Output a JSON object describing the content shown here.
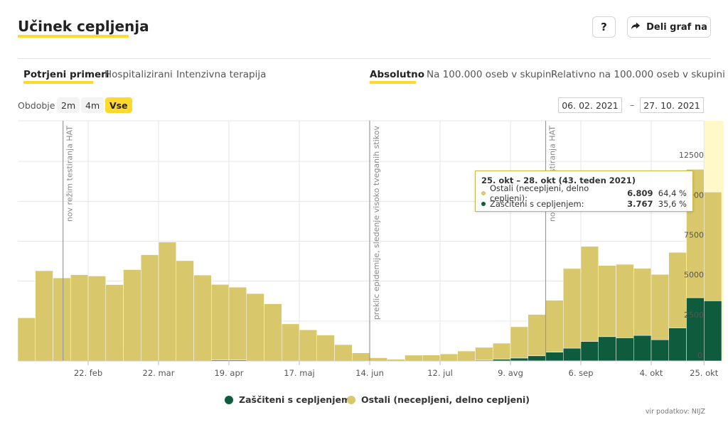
{
  "header": {
    "title": "Učinek cepljenja",
    "help_label": "?",
    "share_label": "Deli graf na"
  },
  "tabs_left": [
    {
      "label": "Potrjeni primeri",
      "active": true
    },
    {
      "label": "Hospitalizirani",
      "active": false
    },
    {
      "label": "Intenzivna terapija",
      "active": false
    }
  ],
  "tabs_right": [
    {
      "label": "Absolutno",
      "active": true
    },
    {
      "label": "Na 100.000 oseb v skupini",
      "active": false
    },
    {
      "label": "Relativno na 100.000 oseb v skupini",
      "active": false
    }
  ],
  "period": {
    "label": "Obdobje",
    "options": [
      "2m",
      "4m",
      "Vse"
    ],
    "selected": "Vse",
    "date_from": "06. 02. 2021",
    "date_to": "27. 10. 2021",
    "dash": "–"
  },
  "tooltip": {
    "header": "25. okt – 28. okt (43. teden 2021)",
    "rows": [
      {
        "label": "Ostali (necepljeni, delno cepljeni):",
        "value": "6.809",
        "pct": "64,4 %"
      },
      {
        "label": "Zaščiteni s cepljenjem:",
        "value": "3.767",
        "pct": "35,6 %"
      }
    ]
  },
  "legend": [
    {
      "label": "Zaščiteni s cepljenjem"
    },
    {
      "label": "Ostali (necepljeni, delno cepljeni)"
    }
  ],
  "source": "vir podatkov: NIJZ",
  "colors": {
    "vaccinated": "#0f5b3d",
    "other": "#d8c86b",
    "accent": "#ffd92c",
    "highlight_band": "#fff8c8",
    "plotline": "#9a9a9a",
    "grid": "#e6e6e6"
  },
  "chart_data": {
    "type": "bar",
    "stacked": true,
    "ylim": [
      0,
      15000
    ],
    "yticks": [
      2500,
      5000,
      7500,
      10000,
      12500
    ],
    "ytick_labels": [
      "2500",
      "5000",
      "7500",
      "10000",
      "12500"
    ],
    "week_start": [
      "2021-01-25",
      "2021-02-01",
      "2021-02-08",
      "2021-02-15",
      "2021-02-22",
      "2021-03-01",
      "2021-03-08",
      "2021-03-15",
      "2021-03-22",
      "2021-03-29",
      "2021-04-05",
      "2021-04-12",
      "2021-04-19",
      "2021-04-26",
      "2021-05-03",
      "2021-05-10",
      "2021-05-17",
      "2021-05-24",
      "2021-05-31",
      "2021-06-07",
      "2021-06-14",
      "2021-06-21",
      "2021-06-28",
      "2021-07-05",
      "2021-07-12",
      "2021-07-19",
      "2021-07-26",
      "2021-08-02",
      "2021-08-09",
      "2021-08-16",
      "2021-08-23",
      "2021-08-30",
      "2021-09-06",
      "2021-09-13",
      "2021-09-20",
      "2021-09-27",
      "2021-10-04",
      "2021-10-11",
      "2021-10-18",
      "2021-10-25"
    ],
    "x_ticks": [
      {
        "date": "2021-02-22",
        "label": "22. feb"
      },
      {
        "date": "2021-03-22",
        "label": "22. mar"
      },
      {
        "date": "2021-04-19",
        "label": "19. apr"
      },
      {
        "date": "2021-05-17",
        "label": "17. maj"
      },
      {
        "date": "2021-06-14",
        "label": "14. jun"
      },
      {
        "date": "2021-07-12",
        "label": "12. jul"
      },
      {
        "date": "2021-08-09",
        "label": "9. avg"
      },
      {
        "date": "2021-09-06",
        "label": "6. sep"
      },
      {
        "date": "2021-10-04",
        "label": "4. okt"
      },
      {
        "date": "2021-10-25",
        "label": "25. okt"
      }
    ],
    "series": [
      {
        "name": "Zaščiteni s cepljenjem",
        "values": [
          0,
          0,
          0,
          0,
          0,
          0,
          0,
          0,
          0,
          0,
          0,
          60,
          60,
          0,
          0,
          0,
          0,
          0,
          0,
          0,
          0,
          0,
          0,
          0,
          0,
          0,
          50,
          110,
          180,
          320,
          550,
          800,
          1220,
          1520,
          1450,
          1600,
          1330,
          2070,
          3960,
          3767
        ]
      },
      {
        "name": "Ostali (necepljeni, delno cepljeni)",
        "values": [
          2700,
          5650,
          5200,
          5400,
          5320,
          4780,
          5720,
          6650,
          7450,
          6280,
          5380,
          4730,
          4560,
          4220,
          3580,
          2320,
          1950,
          1620,
          1020,
          500,
          200,
          100,
          360,
          370,
          440,
          620,
          800,
          1000,
          1960,
          2590,
          3250,
          4990,
          5960,
          4460,
          4600,
          4200,
          4090,
          4730,
          8040,
          6809
        ]
      }
    ],
    "plot_lines": [
      {
        "date": "2021-02-12",
        "label": "nov režim testiranja HAT"
      },
      {
        "date": "2021-06-14",
        "label": "preklic epidemije, sledenje visoko tveganih stikov"
      },
      {
        "date": "2021-08-23",
        "label": "nov režim testiranja HAT"
      }
    ],
    "highlight_band_week": "2021-10-25",
    "grid": true
  }
}
